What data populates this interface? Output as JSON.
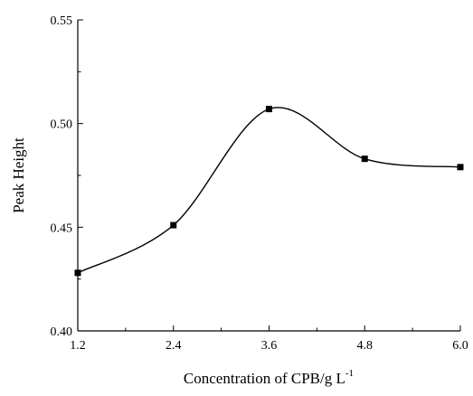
{
  "chart_data": {
    "type": "line",
    "title": "",
    "xlabel": "Concentration of CPB/g L",
    "xlabel_superscript": "-1",
    "ylabel": "Peak Height",
    "x": [
      1.2,
      2.4,
      3.6,
      4.8,
      6.0
    ],
    "series": [
      {
        "y": [
          0.428,
          0.451,
          0.507,
          0.483,
          0.479
        ],
        "marker": "square",
        "line": "smooth-spline"
      }
    ],
    "xlim": [
      1.2,
      6.0
    ],
    "ylim": [
      0.4,
      0.55
    ],
    "xticks": [
      "1.2",
      "2.4",
      "3.6",
      "4.8",
      "6.0"
    ],
    "yticks": [
      "0.40",
      "0.45",
      "0.50",
      "0.55"
    ],
    "grid": false,
    "legend": "none",
    "colors": {
      "line": "#000000",
      "marker": "#000000",
      "axis": "#000000",
      "background": "#ffffff"
    }
  }
}
